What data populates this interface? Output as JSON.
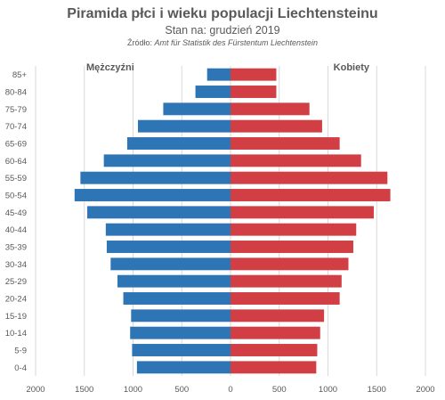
{
  "header": {
    "title": "Piramida płci i wieku populacji Liechtensteinu",
    "subtitle": "Stan na: grudzień 2019",
    "source_prefix": "Źródło: ",
    "source_text": "Amt für Statistik des Fürstentum Liechtenstein"
  },
  "chart_data": {
    "type": "bar",
    "orientation": "horizontal-pyramid",
    "categories": [
      "85+",
      "80-84",
      "75-79",
      "70-74",
      "65-69",
      "60-64",
      "55-59",
      "50-54",
      "45-49",
      "40-44",
      "35-39",
      "30-34",
      "25-29",
      "20-24",
      "15-19",
      "10-14",
      "5-9",
      "0-4"
    ],
    "series": [
      {
        "name": "Mężczyźni",
        "color": "#2e75b6",
        "side": "left",
        "values": [
          240,
          360,
          690,
          950,
          1060,
          1300,
          1540,
          1600,
          1470,
          1280,
          1270,
          1230,
          1160,
          1100,
          1020,
          1030,
          1010,
          960
        ]
      },
      {
        "name": "Kobiety",
        "color": "#d13f44",
        "side": "right",
        "values": [
          470,
          470,
          810,
          940,
          1120,
          1340,
          1610,
          1640,
          1470,
          1290,
          1260,
          1210,
          1140,
          1120,
          960,
          920,
          890,
          880
        ]
      }
    ],
    "xlim": [
      -2000,
      2000
    ],
    "xticks": [
      -2000,
      -1500,
      -1000,
      -500,
      0,
      500,
      1000,
      1500,
      2000
    ],
    "xtick_labels": [
      "2000",
      "1500",
      "1000",
      "500",
      "0",
      "500",
      "1000",
      "1500",
      "2000"
    ],
    "grid": "vertical",
    "legend": "none (series names printed at top-left and top-right of plot)"
  }
}
